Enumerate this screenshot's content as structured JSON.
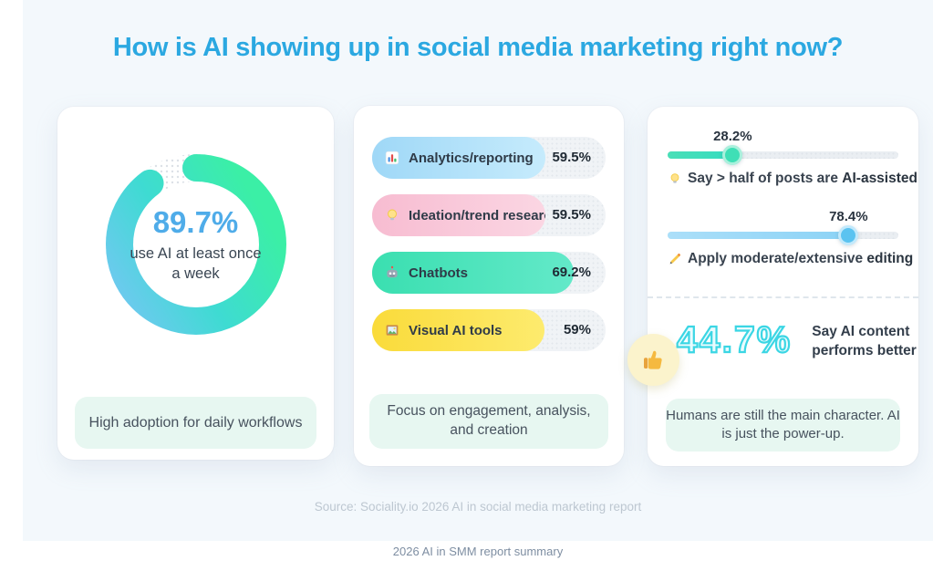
{
  "title": "How is AI showing up in social media marketing right now?",
  "source": "Source: Sociality.io 2026 AI in social media marketing report",
  "footer_caption": "2026 AI in SMM report summary",
  "colors": {
    "title_blue": "#2BA8E1",
    "canvas_bg": "#F3F8FC",
    "donut_value_blue": "#4FACE9",
    "stat_outline_cyan": "#3BD6E4",
    "caption_pill_bg": "#E7F7F1"
  },
  "chart_data": [
    {
      "type": "donut",
      "value": 89.7,
      "value_label": "89.7%",
      "center_text": "use AI at least once a week",
      "caption": "High adoption for daily workflows",
      "gradient": [
        "#74C7F3",
        "#3EDBD2",
        "#3BEFA6"
      ],
      "track_style": "dotted-gray"
    },
    {
      "type": "bar",
      "xlim": [
        0,
        80
      ],
      "bars": [
        {
          "label": "Analytics/reporting",
          "value": 59.5,
          "value_label": "59.5%",
          "icon_name": "bar-chart-icon",
          "fill_from": "#9FD8F7",
          "fill_to": "#C6EBFC"
        },
        {
          "label": "Ideation/trend research",
          "value": 59.5,
          "value_label": "59.5%",
          "icon_name": "lightbulb-icon",
          "fill_from": "#F7BCD1",
          "fill_to": "#FBD6E3"
        },
        {
          "label": "Chatbots",
          "value": 69.2,
          "value_label": "69.2%",
          "icon_name": "robot-icon",
          "fill_from": "#3ADFB0",
          "fill_to": "#63E9C9"
        },
        {
          "label": "Visual AI tools",
          "value": 59,
          "value_label": "59%",
          "icon_name": "framed-picture-icon",
          "fill_from": "#FADB3A",
          "fill_to": "#FDEB6E"
        }
      ],
      "caption": "Focus on engagement, analysis, and creation"
    },
    {
      "type": "slider-stats",
      "sliders": [
        {
          "value": 28.2,
          "value_label": "28.2%",
          "icon_name": "lightbulb-icon",
          "text": "Say > half of posts are ",
          "text_bold": "AI-assisted",
          "fill_from": "#4ADFB7",
          "fill_to": "#35DCC0",
          "thumb_color": "#3FDFB6",
          "thumb_ring": "#A9F0DC"
        },
        {
          "value": 78.4,
          "value_label": "78.4%",
          "icon_name": "pencil-icon",
          "text": "Apply moderate/extensive ",
          "text_bold": "editing",
          "fill_from": "#ABDFF9",
          "fill_to": "#8CD3F6",
          "thumb_color": "#5BC3F0",
          "thumb_ring": "#C2E9FB"
        }
      ],
      "stat": {
        "value_label": "44.7%",
        "text": "Say AI content performs better"
      },
      "badge_icon_name": "thumbs-up-icon",
      "caption": "Humans are still the main character. AI is just the power-up."
    }
  ]
}
